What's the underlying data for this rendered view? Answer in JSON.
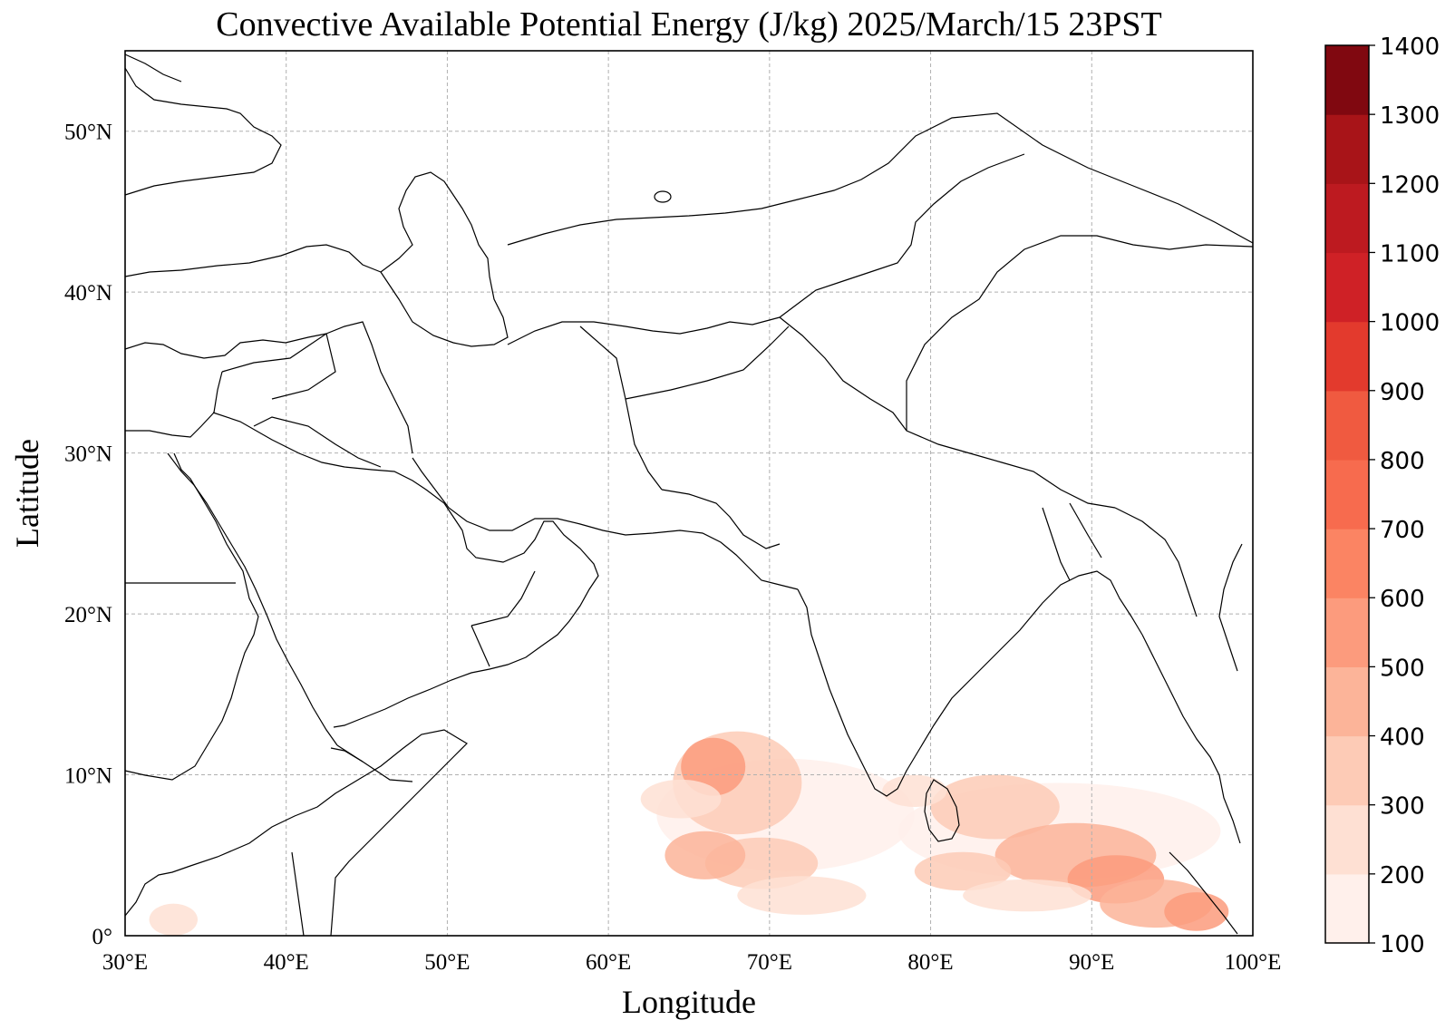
{
  "map": {
    "title": "Convective Available Potential Energy (J/kg)  2025/March/15 23PST",
    "xlabel": "Longitude",
    "ylabel": "Latitude",
    "lon_range": [
      30,
      100
    ],
    "lat_range": [
      0,
      55
    ],
    "x_ticks": [
      {
        "value": 30,
        "label": "30°E"
      },
      {
        "value": 40,
        "label": "40°E"
      },
      {
        "value": 50,
        "label": "50°E"
      },
      {
        "value": 60,
        "label": "60°E"
      },
      {
        "value": 70,
        "label": "70°E"
      },
      {
        "value": 80,
        "label": "80°E"
      },
      {
        "value": 90,
        "label": "90°E"
      },
      {
        "value": 100,
        "label": "100°E"
      }
    ],
    "y_ticks": [
      {
        "value": 0,
        "label": "0°"
      },
      {
        "value": 10,
        "label": "10°N"
      },
      {
        "value": 20,
        "label": "20°N"
      },
      {
        "value": 30,
        "label": "30°N"
      },
      {
        "value": 40,
        "label": "40°N"
      },
      {
        "value": 50,
        "label": "50°N"
      }
    ],
    "grid": true,
    "grid_style": "dashed",
    "colormap": "Reds",
    "colorbar": {
      "position": "right",
      "levels": [
        100,
        200,
        300,
        400,
        500,
        600,
        700,
        800,
        900,
        1000,
        1100,
        1200,
        1300,
        1400
      ],
      "colors": [
        "#fff0eb",
        "#fee0d3",
        "#fdcbb6",
        "#fcb499",
        "#fc9b7d",
        "#fb8463",
        "#f76b4e",
        "#f05a40",
        "#e33a2d",
        "#cf2126",
        "#bd1a20",
        "#a81418",
        "#800810"
      ]
    }
  }
}
